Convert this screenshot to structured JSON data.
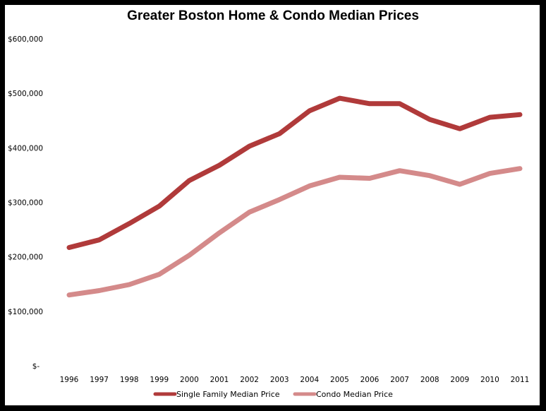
{
  "chart_data": {
    "type": "line",
    "title": "Greater Boston Home & Condo Median Prices",
    "xlabel": "",
    "ylabel": "",
    "categories": [
      "1996",
      "1997",
      "1998",
      "1999",
      "2000",
      "2001",
      "2002",
      "2003",
      "2004",
      "2005",
      "2006",
      "2007",
      "2008",
      "2009",
      "2010",
      "2011"
    ],
    "ylim": [
      0,
      600000
    ],
    "yticks": [
      0,
      100000,
      200000,
      300000,
      400000,
      500000,
      600000
    ],
    "ytick_labels": [
      "$-",
      "$100,000",
      "$200,000",
      "$300,000",
      "$400,000",
      "$500,000",
      "$600,000"
    ],
    "grid": false,
    "legend_position": "bottom",
    "series": [
      {
        "name": "Single Family Median Price",
        "color": "#B03A3A",
        "values": [
          217000,
          231000,
          261000,
          293000,
          340000,
          368000,
          403000,
          426000,
          468000,
          491000,
          481000,
          481000,
          452000,
          435000,
          456000,
          461000
        ]
      },
      {
        "name": "Condo Median Price",
        "color": "#D48A8A",
        "values": [
          130000,
          138000,
          149000,
          168000,
          203000,
          244000,
          282000,
          305000,
          330000,
          346000,
          344000,
          358000,
          349000,
          333000,
          353000,
          362000
        ]
      }
    ]
  }
}
